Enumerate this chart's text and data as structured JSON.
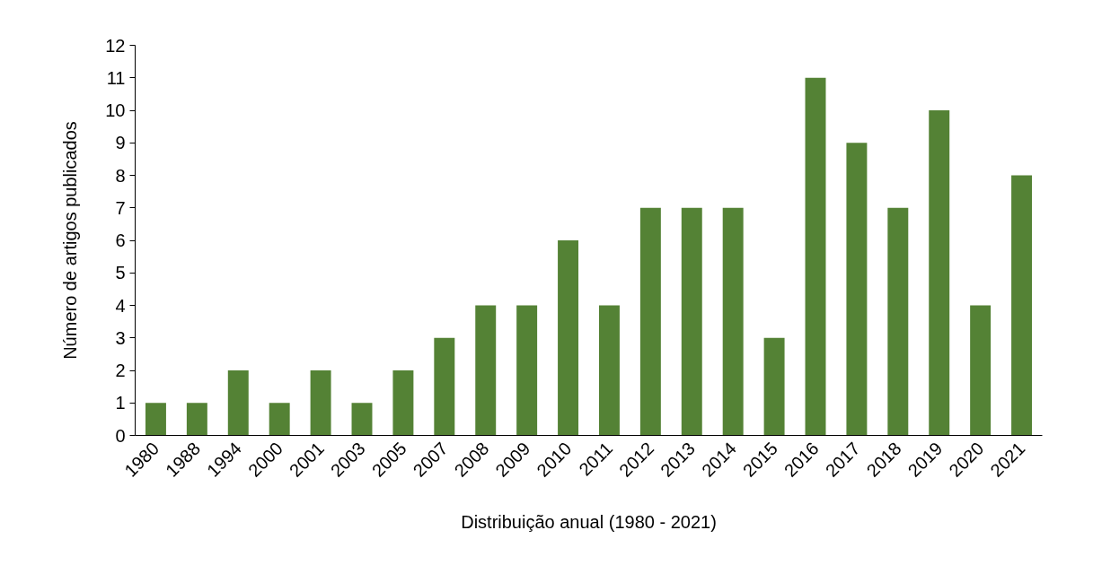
{
  "chart_data": {
    "type": "bar",
    "xlabel": "Distribuição anual (1980 - 2021)",
    "ylabel": "Número de artigos publicados",
    "categories": [
      "1980",
      "1988",
      "1994",
      "2000",
      "2001",
      "2003",
      "2005",
      "2007",
      "2008",
      "2009",
      "2010",
      "2011",
      "2012",
      "2013",
      "2014",
      "2015",
      "2016",
      "2017",
      "2018",
      "2019",
      "2020",
      "2021"
    ],
    "values": [
      1,
      1,
      2,
      1,
      2,
      1,
      2,
      3,
      4,
      4,
      6,
      4,
      7,
      7,
      7,
      3,
      11,
      9,
      7,
      10,
      4,
      8
    ],
    "color": "#548235",
    "ylim": [
      0,
      12
    ],
    "yticks": [
      0,
      1,
      2,
      3,
      4,
      5,
      6,
      7,
      8,
      9,
      10,
      11,
      12
    ],
    "grid": false
  }
}
